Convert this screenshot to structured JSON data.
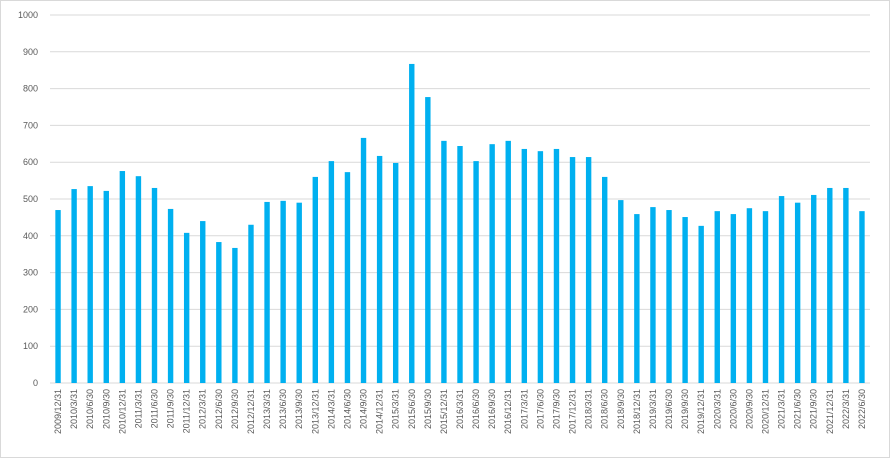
{
  "chart_data": {
    "type": "bar",
    "color": "#00b0f0",
    "grid": true,
    "categories": [
      "2009/12/31",
      "2010/3/31",
      "2010/6/30",
      "2010/9/30",
      "2010/12/31",
      "2011/3/31",
      "2011/6/30",
      "2011/9/30",
      "2011/12/31",
      "2012/3/31",
      "2012/6/30",
      "2012/9/30",
      "2012/12/31",
      "2013/3/31",
      "2013/6/30",
      "2013/9/30",
      "2013/12/31",
      "2014/3/31",
      "2014/6/30",
      "2014/9/30",
      "2014/12/31",
      "2015/3/31",
      "2015/6/30",
      "2015/9/30",
      "2015/12/31",
      "2016/3/31",
      "2016/6/30",
      "2016/9/30",
      "2016/12/31",
      "2017/3/31",
      "2017/6/30",
      "2017/9/30",
      "2017/12/31",
      "2018/3/31",
      "2018/6/30",
      "2018/9/30",
      "2018/12/31",
      "2019/3/31",
      "2019/6/30",
      "2019/9/30",
      "2019/12/31",
      "2020/3/31",
      "2020/6/30",
      "2020/9/30",
      "2020/12/31",
      "2021/3/31",
      "2021/6/30",
      "2021/9/30",
      "2021/12/31",
      "2022/3/31",
      "2022/6/30"
    ],
    "values": [
      470,
      527,
      535,
      522,
      576,
      562,
      530,
      473,
      408,
      440,
      383,
      367,
      430,
      492,
      495,
      490,
      560,
      603,
      573,
      666,
      617,
      598,
      867,
      777,
      658,
      644,
      603,
      649,
      658,
      636,
      630,
      636,
      614,
      614,
      560,
      497,
      459,
      478,
      470,
      451,
      427,
      467,
      459,
      475,
      467,
      508,
      490,
      511,
      530,
      530,
      467
    ],
    "ylim": [
      0,
      1000
    ],
    "yticks": [
      0,
      100,
      200,
      300,
      400,
      500,
      600,
      700,
      800,
      900,
      1000
    ]
  }
}
